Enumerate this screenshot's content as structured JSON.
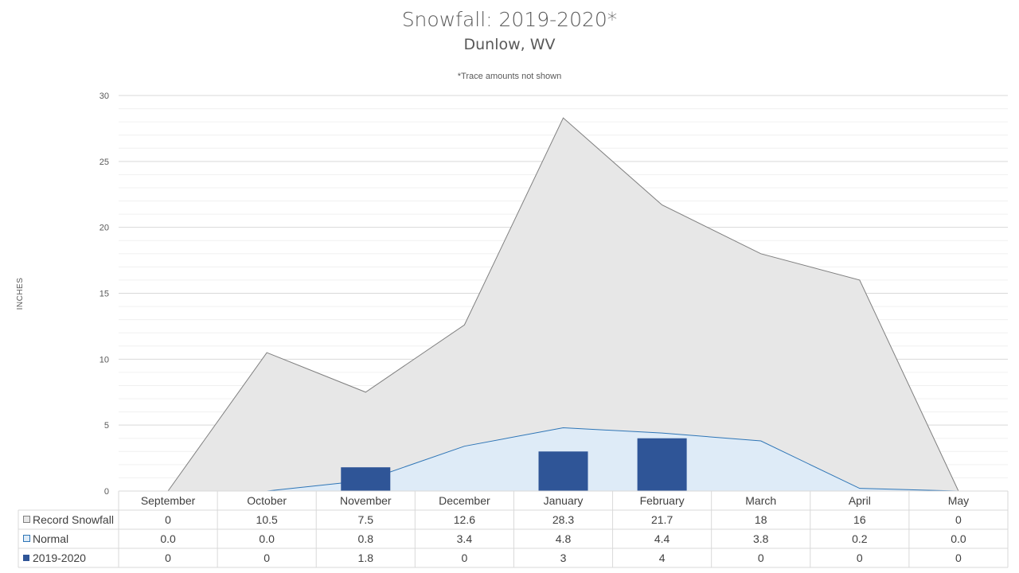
{
  "chart_data": {
    "type": "area",
    "title": "Snowfall: 2019-2020*",
    "subtitle": "Dunlow, WV",
    "note": "*Trace amounts not shown",
    "ylabel": "INCHES",
    "xlabel": "",
    "ylim": [
      0,
      30
    ],
    "yticks": [
      0,
      5,
      10,
      15,
      20,
      25,
      30
    ],
    "grid": true,
    "legend": "data-table",
    "categories": [
      "September",
      "October",
      "November",
      "December",
      "January",
      "February",
      "March",
      "April",
      "May"
    ],
    "series": [
      {
        "name": "Record Snowfall",
        "kind": "area",
        "color": "#e7e7e7",
        "line_color": "#7f7f7f",
        "values": [
          0,
          10.5,
          7.5,
          12.6,
          28.3,
          21.7,
          18,
          16,
          0
        ],
        "labels": [
          "0",
          "10.5",
          "7.5",
          "12.6",
          "28.3",
          "21.7",
          "18",
          "16",
          "0"
        ]
      },
      {
        "name": "Normal",
        "kind": "area",
        "color": "#deebf7",
        "line_color": "#2e75b6",
        "values": [
          0.0,
          0.0,
          0.8,
          3.4,
          4.8,
          4.4,
          3.8,
          0.2,
          0.0
        ],
        "labels": [
          "0.0",
          "0.0",
          "0.8",
          "3.4",
          "4.8",
          "4.4",
          "3.8",
          "0.2",
          "0.0"
        ]
      },
      {
        "name": "2019-2020",
        "kind": "bar",
        "color": "#2f5597",
        "values": [
          0,
          0,
          1.8,
          0,
          3,
          4,
          0,
          0,
          0
        ],
        "labels": [
          "0",
          "0",
          "1.8",
          "0",
          "3",
          "4",
          "0",
          "0",
          "0"
        ]
      }
    ]
  }
}
